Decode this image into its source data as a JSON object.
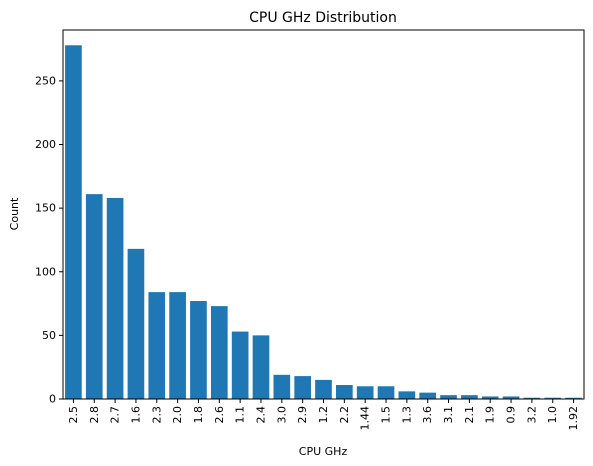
{
  "chart_data": {
    "type": "bar",
    "title": "CPU GHz Distribution",
    "xlabel": "CPU GHz",
    "ylabel": "Count",
    "ylim": [
      0,
      290
    ],
    "yticks": [
      0,
      50,
      100,
      150,
      200,
      250
    ],
    "categories": [
      "2.5",
      "2.8",
      "2.7",
      "1.6",
      "2.3",
      "2.0",
      "1.8",
      "2.6",
      "1.1",
      "2.4",
      "3.0",
      "2.9",
      "1.2",
      "2.2",
      "1.44",
      "1.5",
      "1.3",
      "3.6",
      "3.1",
      "2.1",
      "1.9",
      "0.9",
      "3.2",
      "1.0",
      "1.92"
    ],
    "values": [
      278,
      161,
      158,
      118,
      84,
      84,
      77,
      73,
      53,
      50,
      19,
      18,
      15,
      11,
      10,
      10,
      6,
      5,
      3,
      3,
      2,
      2,
      1,
      1,
      1
    ],
    "color": "#1f77b4",
    "grid": false
  }
}
